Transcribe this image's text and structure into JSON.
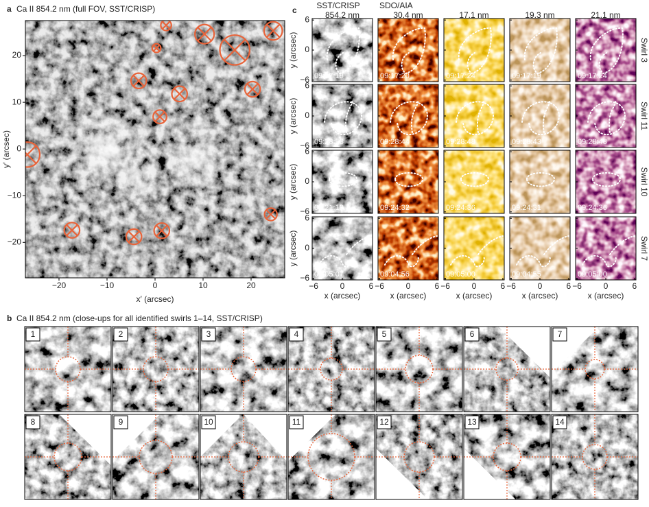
{
  "panel_a": {
    "label": "a",
    "title": "Ca II 854.2 nm (full FOV, SST/CRISP)",
    "x_label": "x′ (arcsec)",
    "y_label": "y′ (arcsec)",
    "xlim": [
      -27,
      27
    ],
    "ylim": [
      -27.6,
      27.5
    ],
    "xticks": [
      {
        "value": -20,
        "label": "−20"
      },
      {
        "value": -10,
        "label": "−10"
      },
      0,
      10,
      20
    ],
    "yticks": [
      {
        "value": -20,
        "label": "−20"
      },
      {
        "value": -10,
        "label": "−10"
      },
      0,
      10,
      20
    ],
    "markers": [
      {
        "x": 2.3,
        "y": 26.5,
        "r": 1.1
      },
      {
        "x": 10.3,
        "y": 24.6,
        "r": 2.0
      },
      {
        "x": 16.6,
        "y": 21.2,
        "r": 3.1
      },
      {
        "x": 24.6,
        "y": 25.3,
        "r": 1.9
      },
      {
        "x": 0.3,
        "y": 21.6,
        "r": 0.9
      },
      {
        "x": -3.4,
        "y": 14.6,
        "r": 1.6
      },
      {
        "x": 5.1,
        "y": 11.8,
        "r": 1.6
      },
      {
        "x": 20.3,
        "y": 12.8,
        "r": 1.6
      },
      {
        "x": 1.0,
        "y": 6.9,
        "r": 1.4
      },
      {
        "x": -26.6,
        "y": -1.2,
        "r": 2.6
      },
      {
        "x": -17.3,
        "y": -17.4,
        "r": 1.6
      },
      {
        "x": -4.4,
        "y": -18.8,
        "r": 1.6
      },
      {
        "x": 1.4,
        "y": -17.5,
        "r": 1.6
      },
      {
        "x": 24.1,
        "y": -14.0,
        "r": 1.3
      }
    ]
  },
  "panel_c": {
    "label": "c",
    "group_headers": [
      "SST/CRISP",
      "SDO/AIA"
    ],
    "wavelengths": [
      "854.2 nm",
      "30.4 nm",
      "17.1 nm",
      "19.3 nm",
      "21.1 nm"
    ],
    "x_label": "x (arcsec)",
    "y_label": "y (arcsec)",
    "xlim": [
      -6.3,
      6.3
    ],
    "ylim": [
      -6.3,
      6.3
    ],
    "xticks": [
      {
        "value": -6,
        "label": "−6"
      },
      0,
      6
    ],
    "yticks": [
      {
        "value": -6,
        "label": "−6"
      },
      0,
      6
    ],
    "rows": [
      {
        "name": "Swirl 3",
        "times": [
          "09:17:19",
          "09:17:20",
          "09:17:24",
          "09:17:19",
          "09:17:24"
        ]
      },
      {
        "name": "Swirl 11",
        "times": [
          "09:28:53",
          "09:28:44",
          "09:28:48",
          "09:28:43",
          "09:28:48"
        ]
      },
      {
        "name": "Swirl 10",
        "times": [
          "09:21:19",
          "09:24:32",
          "09:24:36",
          "09:24:31",
          "09:24:36"
        ]
      },
      {
        "name": "Swirl 7",
        "times": [
          "09:05:07",
          "09:04:56",
          "09:05:00",
          "09:04:55",
          "09:05:00"
        ]
      }
    ]
  },
  "panel_b": {
    "label": "b",
    "title": "Ca II 854.2 nm (close-ups for all identified swirls 1–14, SST/CRISP)",
    "swirls": [
      1,
      2,
      3,
      4,
      5,
      6,
      7,
      8,
      9,
      10,
      11,
      12,
      13,
      14
    ]
  }
}
